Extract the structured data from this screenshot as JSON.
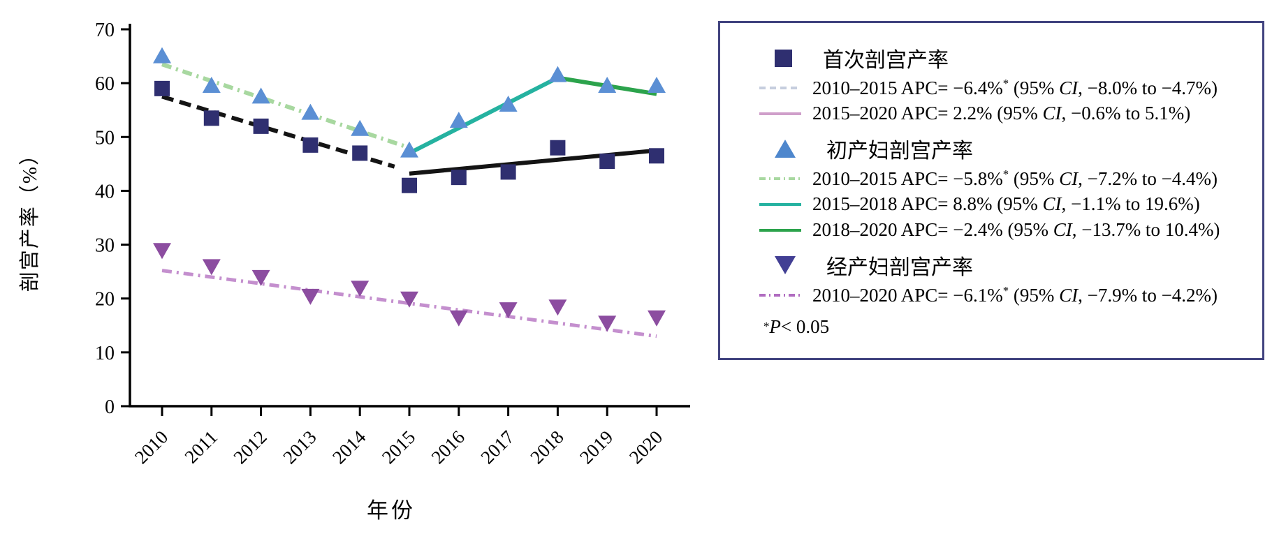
{
  "chart_data": {
    "type": "line",
    "title": "",
    "xlabel": "年份",
    "ylabel": "剖宫产率（%）",
    "ylim": [
      0,
      70
    ],
    "yticks": [
      0,
      10,
      20,
      30,
      40,
      50,
      60,
      70
    ],
    "grid": false,
    "legend_position": "outside-right",
    "categories": [
      "2010",
      "2011",
      "2012",
      "2013",
      "2014",
      "2015",
      "2016",
      "2017",
      "2018",
      "2019",
      "2020"
    ],
    "series": [
      {
        "name": "首次剖宫产率",
        "marker": "square",
        "color": "#2f2f70",
        "values": [
          59,
          53.5,
          52,
          48.5,
          47,
          41,
          42.5,
          43.5,
          48,
          45.5,
          46.5
        ]
      },
      {
        "name": "初产妇剖宫产率",
        "marker": "triangle-up",
        "color": "#5b8fd4",
        "values": [
          65,
          59.5,
          57.5,
          54.5,
          51.5,
          47.5,
          53,
          56,
          61.5,
          59.5,
          59.5
        ]
      },
      {
        "name": "经产妇剖宫产率",
        "marker": "triangle-down",
        "color": "#8c4da0",
        "values": [
          29,
          26,
          24,
          20.5,
          22,
          20,
          16.5,
          18,
          18.5,
          15.5,
          16.5
        ]
      }
    ],
    "trends": [
      {
        "series": "首次剖宫产率",
        "x0": 2010,
        "y0": 57.5,
        "x1": 2014.7,
        "y1": 44.5,
        "style": "dashed",
        "color": "#141414",
        "width": 6
      },
      {
        "series": "首次剖宫产率",
        "x0": 2015,
        "y0": 43.2,
        "x1": 2020,
        "y1": 47.5,
        "style": "solid",
        "color": "#141414",
        "width": 6
      },
      {
        "series": "初产妇剖宫产率",
        "x0": 2010,
        "y0": 63.5,
        "x1": 2015,
        "y1": 48,
        "style": "dash-dot",
        "color": "#a8d8a0",
        "width": 6
      },
      {
        "series": "初产妇剖宫产率",
        "x0": 2015,
        "y0": 47,
        "x1": 2018,
        "y1": 61,
        "style": "solid",
        "color": "#25b2a0",
        "width": 6
      },
      {
        "series": "初产妇剖宫产率",
        "x0": 2018,
        "y0": 61,
        "x1": 2020,
        "y1": 58,
        "style": "solid",
        "color": "#2ca34c",
        "width": 6
      },
      {
        "series": "经产妇剖宫产率",
        "x0": 2010,
        "y0": 25.2,
        "x1": 2020,
        "y1": 13,
        "style": "dash-dot",
        "color": "#c48fce",
        "width": 5
      }
    ]
  },
  "legend": {
    "border_color": "#41437f",
    "groups": [
      {
        "marker": "square",
        "marker_color": "#2f2f70",
        "label": "首次剖宫产率",
        "entries": [
          {
            "style": "dashed",
            "color": "#c6cede",
            "segments": [
              {
                "t": "2010–2015 APC= −6.4%"
              },
              {
                "t": "*",
                "sup": true
              },
              {
                "t": " (95% "
              },
              {
                "t": "CI",
                "italic": true
              },
              {
                "t": ", −8.0% to −4.7%)"
              }
            ]
          },
          {
            "style": "solid",
            "color": "#cf9fca",
            "segments": [
              {
                "t": "2015–2020 APC= 2.2% (95% "
              },
              {
                "t": "CI",
                "italic": true
              },
              {
                "t": ", −0.6% to 5.1%)"
              }
            ]
          }
        ]
      },
      {
        "marker": "triangle-up",
        "marker_color": "#4e87cd",
        "label": "初产妇剖宫产率",
        "entries": [
          {
            "style": "dash-dot",
            "color": "#a8d8a0",
            "segments": [
              {
                "t": "2010–2015 APC= −5.8%"
              },
              {
                "t": "*",
                "sup": true
              },
              {
                "t": " (95% "
              },
              {
                "t": "CI",
                "italic": true
              },
              {
                "t": ", −7.2% to −4.4%)"
              }
            ]
          },
          {
            "style": "solid",
            "color": "#25b2a0",
            "segments": [
              {
                "t": "2015–2018 APC= 8.8% (95% "
              },
              {
                "t": "CI",
                "italic": true
              },
              {
                "t": ", −1.1% to 19.6%)"
              }
            ]
          },
          {
            "style": "solid",
            "color": "#2ca34c",
            "segments": [
              {
                "t": "2018–2020 APC= −2.4% (95% "
              },
              {
                "t": "CI",
                "italic": true
              },
              {
                "t": ", −13.7% to 10.4%)"
              }
            ]
          }
        ]
      },
      {
        "marker": "triangle-down",
        "marker_color": "#423f94",
        "label": "经产妇剖宫产率",
        "entries": [
          {
            "style": "dash-dot",
            "color": "#b06cc0",
            "segments": [
              {
                "t": "2010–2020 APC= −6.1%"
              },
              {
                "t": "*",
                "sup": true
              },
              {
                "t": " (95% "
              },
              {
                "t": "CI",
                "italic": true
              },
              {
                "t": ", −7.9% to −4.2%)"
              }
            ]
          }
        ]
      }
    ],
    "footnote_segments": [
      {
        "t": "*",
        "sup": true
      },
      {
        "t": "P",
        "italic": true
      },
      {
        "t": " < 0.05"
      }
    ]
  }
}
